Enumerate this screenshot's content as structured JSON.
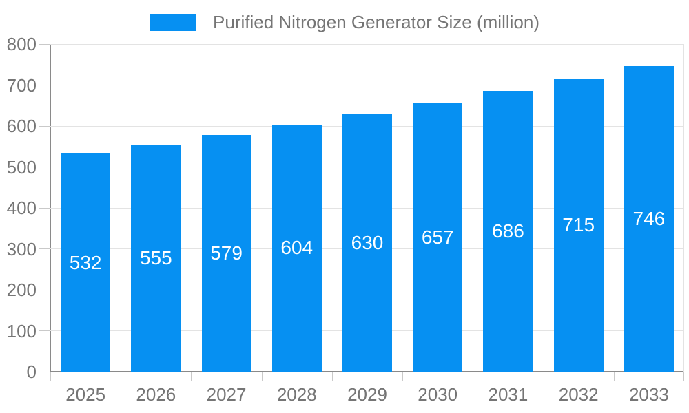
{
  "chart_data": {
    "type": "bar",
    "title": "",
    "legend": {
      "position": "top",
      "label": "Purified Nitrogen Generator Size (million)"
    },
    "categories": [
      "2025",
      "2026",
      "2027",
      "2028",
      "2029",
      "2030",
      "2031",
      "2032",
      "2033"
    ],
    "values": [
      532,
      555,
      579,
      604,
      630,
      657,
      686,
      715,
      746
    ],
    "xlabel": "",
    "ylabel": "",
    "ylim": [
      0,
      800
    ],
    "ytick_step": 100,
    "ytick_labels": [
      "0",
      "100",
      "200",
      "300",
      "400",
      "500",
      "600",
      "700",
      "800"
    ],
    "grid": true,
    "value_labels": "inside-center"
  },
  "colors": {
    "bar": "#0690f2",
    "grid": "#e3e3e3",
    "axis": "#8a8a8a",
    "tick": "#c9c9c9",
    "tick_label": "#757575",
    "value_label": "#ffffff",
    "background": "#ffffff"
  }
}
